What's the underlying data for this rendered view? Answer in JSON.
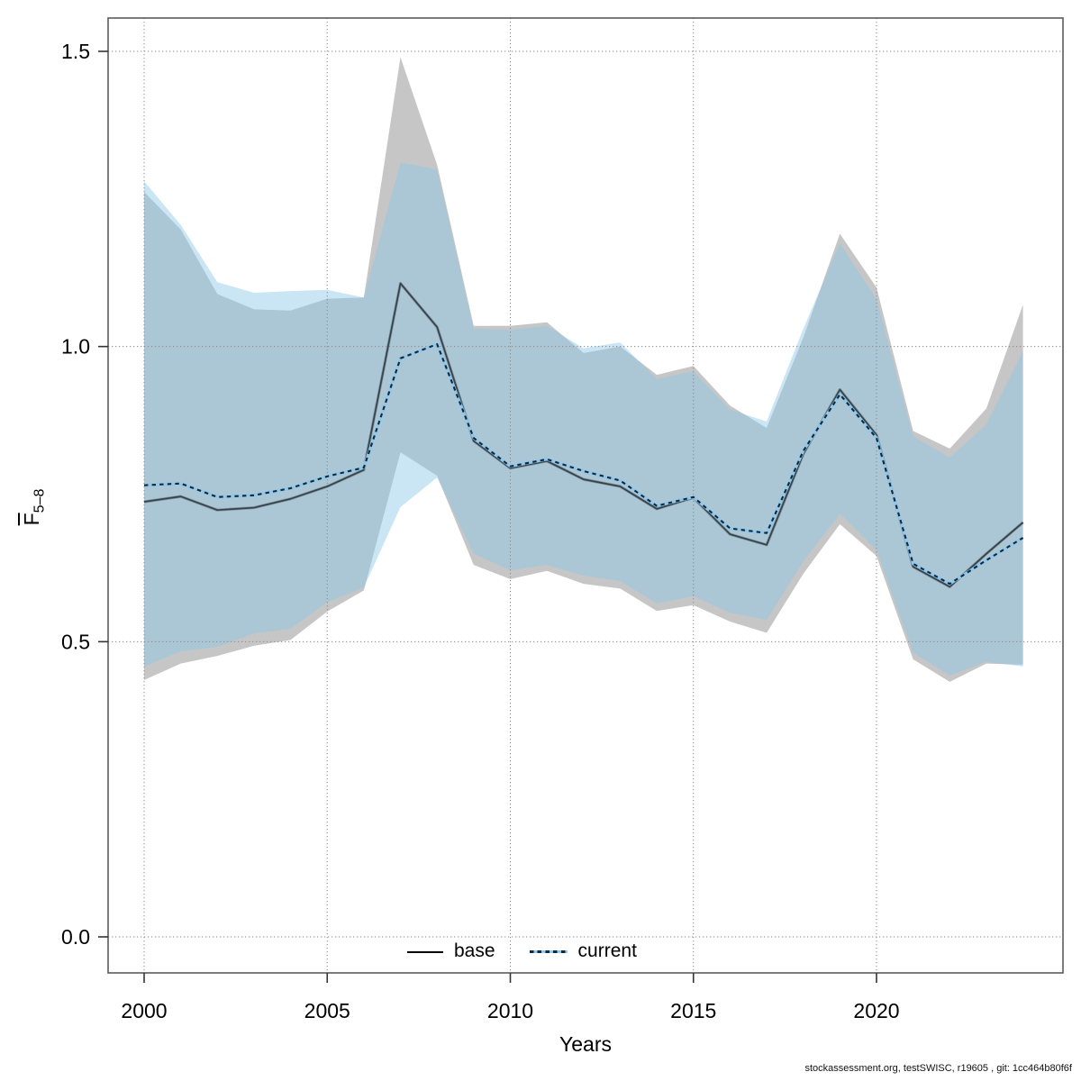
{
  "axes": {
    "x_label": "Years",
    "y_label_main": "F",
    "y_label_sub": "5–8",
    "x_ticks": [
      2000,
      2005,
      2010,
      2015,
      2020
    ],
    "y_ticks": [
      0.0,
      0.5,
      1.0,
      1.5
    ]
  },
  "legend": {
    "base_label": "base",
    "current_label": "current"
  },
  "footer": "stockassessment.org, testSWISC, r19605 , git: 1cc464b80f6f",
  "colors": {
    "grid": "#8a8a8a",
    "axis_border": "#5c5c5c",
    "tick": "#333333",
    "base_ci": "#c6c6c6",
    "current_ci": "#8ac6e7",
    "base_line_core": "#37424a",
    "base_line_halo": "#8298a4",
    "current_line_dash": "#0f2940",
    "current_line_under": "#8fc8ea"
  },
  "chart_data": {
    "type": "line",
    "title": "",
    "xlabel": "Years",
    "ylabel": "Fbar 5-8",
    "grid": true,
    "legend_position": "bottom-center",
    "xlim": [
      1999.0,
      2025.1
    ],
    "ylim": [
      -0.06,
      1.56
    ],
    "x_ticks": [
      2000,
      2005,
      2010,
      2015,
      2020
    ],
    "y_ticks": [
      0,
      0.5,
      1,
      1.5
    ],
    "x": [
      2000,
      2001,
      2002,
      2003,
      2004,
      2005,
      2006,
      2007,
      2008,
      2009,
      2010,
      2011,
      2012,
      2013,
      2014,
      2015,
      2016,
      2017,
      2018,
      2019,
      2020,
      2021,
      2022,
      2023,
      2024
    ],
    "series": [
      {
        "name": "base",
        "line_style": "solid",
        "values": [
          0.737,
          0.746,
          0.723,
          0.727,
          0.742,
          0.763,
          0.791,
          1.107,
          1.033,
          0.84,
          0.794,
          0.806,
          0.775,
          0.763,
          0.725,
          0.744,
          0.682,
          0.664,
          0.818,
          0.927,
          0.85,
          0.627,
          0.593,
          0.649,
          0.702
        ],
        "ci_upper": [
          1.262,
          1.198,
          1.089,
          1.063,
          1.061,
          1.081,
          1.083,
          1.49,
          1.308,
          1.035,
          1.035,
          1.041,
          0.989,
          1.0,
          0.952,
          0.967,
          0.9,
          0.862,
          1.015,
          1.191,
          1.1,
          0.857,
          0.827,
          0.895,
          1.071
        ],
        "ci_lower": [
          0.435,
          0.463,
          0.476,
          0.493,
          0.503,
          0.551,
          0.587,
          0.821,
          0.781,
          0.63,
          0.606,
          0.62,
          0.598,
          0.59,
          0.552,
          0.562,
          0.534,
          0.515,
          0.615,
          0.699,
          0.645,
          0.47,
          0.432,
          0.463,
          0.461
        ]
      },
      {
        "name": "current",
        "line_style": "dotted",
        "ci_opacity": 0.45,
        "values": [
          0.765,
          0.768,
          0.745,
          0.748,
          0.76,
          0.78,
          0.795,
          0.98,
          1.004,
          0.845,
          0.797,
          0.809,
          0.789,
          0.773,
          0.73,
          0.745,
          0.692,
          0.684,
          0.823,
          0.919,
          0.845,
          0.632,
          0.598,
          0.638,
          0.676
        ],
        "ci_upper": [
          1.28,
          1.206,
          1.109,
          1.091,
          1.094,
          1.096,
          1.083,
          1.312,
          1.3,
          1.03,
          1.028,
          1.035,
          0.997,
          1.007,
          0.945,
          0.958,
          0.893,
          0.873,
          1.03,
          1.175,
          1.08,
          0.848,
          0.812,
          0.868,
          0.992
        ],
        "ci_lower": [
          0.458,
          0.484,
          0.491,
          0.514,
          0.522,
          0.567,
          0.592,
          0.728,
          0.778,
          0.649,
          0.621,
          0.63,
          0.612,
          0.603,
          0.565,
          0.577,
          0.549,
          0.537,
          0.636,
          0.717,
          0.655,
          0.481,
          0.443,
          0.466,
          0.458
        ]
      }
    ]
  }
}
